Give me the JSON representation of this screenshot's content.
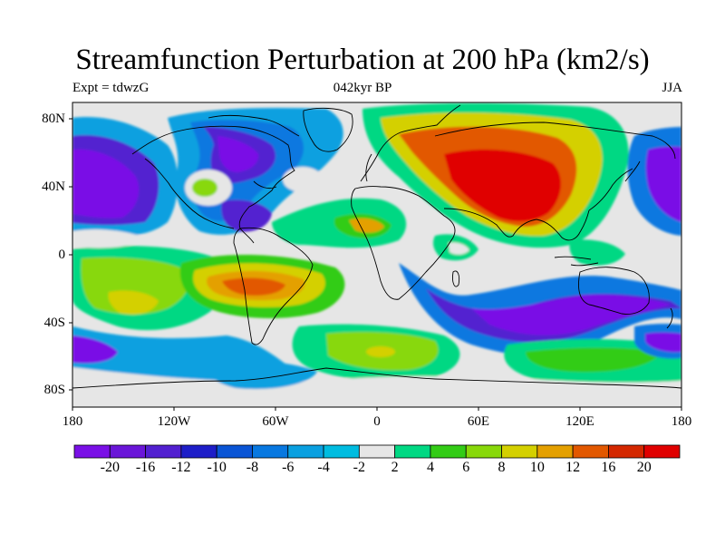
{
  "title": "Streamfunction Perturbation at 200 hPa (km2/s)",
  "subtitle_left": "Expt = tdwzG",
  "subtitle_center": "042kyr BP",
  "subtitle_right": "JJA",
  "y_ticks": [
    "80N",
    "40N",
    "0",
    "40S",
    "80S"
  ],
  "x_ticks": [
    "180",
    "120W",
    "60W",
    "0",
    "60E",
    "120E",
    "180"
  ],
  "colorbar": {
    "labels": [
      "-20",
      "-16",
      "-12",
      "-10",
      "-8",
      "-6",
      "-4",
      "-2",
      "2",
      "4",
      "6",
      "8",
      "10",
      "12",
      "16",
      "20"
    ],
    "colors": [
      "#7a10e6",
      "#6a16d8",
      "#5220d0",
      "#1e1ec8",
      "#0a55d5",
      "#0878e0",
      "#0aa0e0",
      "#00bce0",
      "#e6e6e6",
      "#00d883",
      "#33cc16",
      "#88d80a",
      "#d4d000",
      "#e4a000",
      "#e25800",
      "#d42800",
      "#e00000"
    ]
  },
  "map_colors": {
    "neutral": "#e6e6e6",
    "coast": "#000000"
  }
}
